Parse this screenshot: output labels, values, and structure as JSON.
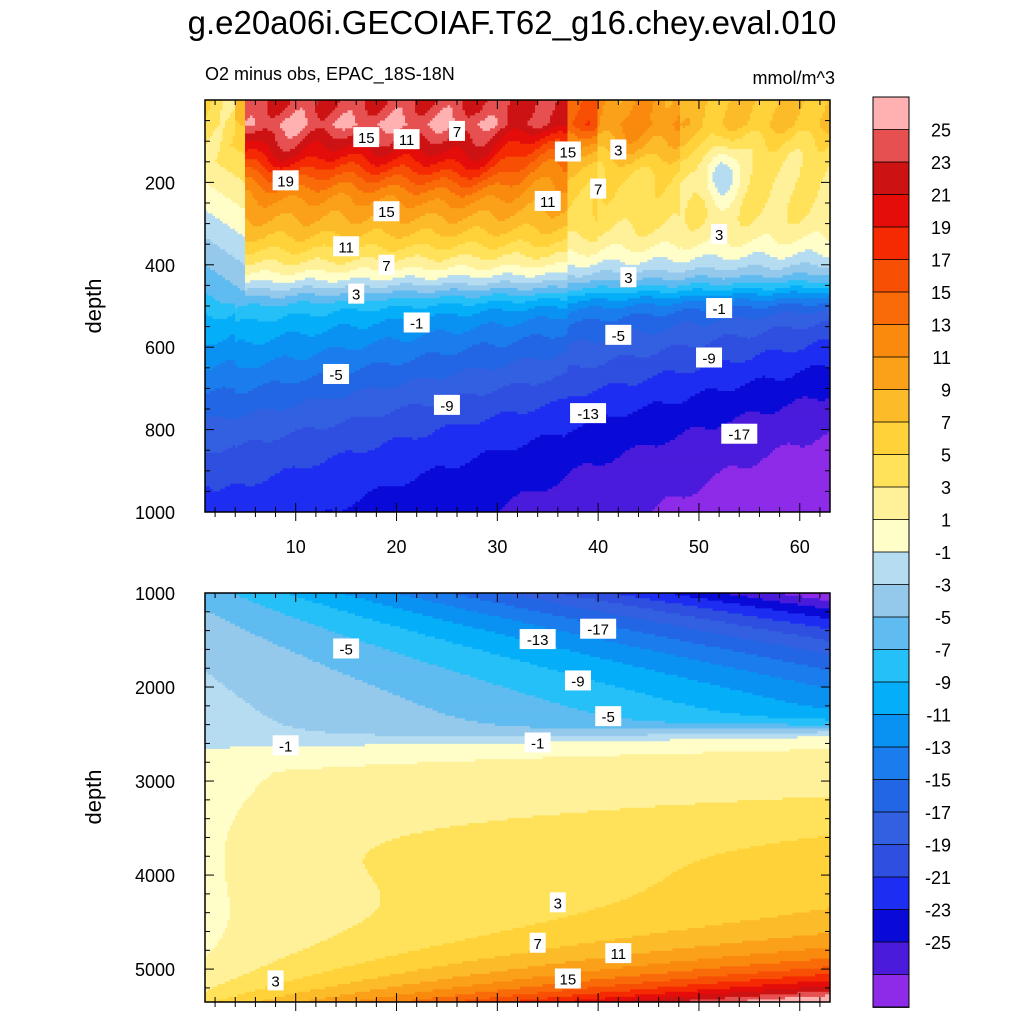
{
  "title": "g.e20a06i.GECOIAF.T62_g16.chey.eval.010",
  "subtitle_left": "O2 minus obs, EPAC_18S-18N",
  "subtitle_right": "mmol/m^3",
  "colors": {
    "pos": [
      "#fffdc8",
      "#fff19a",
      "#ffe15a",
      "#ffd23a",
      "#fcbc2a",
      "#fba019",
      "#fa8a0e",
      "#f96b09",
      "#f74f04",
      "#f52a02",
      "#e40d0a",
      "#cc1212",
      "#e65050",
      "#ffb0b0"
    ],
    "neg": [
      "#b5dcf0",
      "#94c9ec",
      "#5fbbf0",
      "#26c0f8",
      "#04aef8",
      "#0a92f2",
      "#1a7ced",
      "#2266e5",
      "#3360e0",
      "#2e4fdf",
      "#1e2df2",
      "#0a0ad8",
      "#4b1bdc",
      "#8d2be8"
    ]
  },
  "chart_data": [
    {
      "type": "contour",
      "panel": "upper",
      "title": "",
      "xlabel": "",
      "ylabel": "depth",
      "xlim": [
        1,
        63
      ],
      "ylim": [
        1000,
        0
      ],
      "x_ticks": [
        "10",
        "20",
        "30",
        "40",
        "50",
        "60"
      ],
      "y_ticks": [
        "200",
        "400",
        "600",
        "800",
        "1000"
      ],
      "contour_interval": 2,
      "contour_labels": [
        {
          "text": "15",
          "x": 17,
          "y": 90
        },
        {
          "text": "11",
          "x": 21,
          "y": 95
        },
        {
          "text": "7",
          "x": 26,
          "y": 75
        },
        {
          "text": "15",
          "x": 37,
          "y": 125
        },
        {
          "text": "3",
          "x": 42,
          "y": 120
        },
        {
          "text": "19",
          "x": 9,
          "y": 195
        },
        {
          "text": "7",
          "x": 40,
          "y": 215
        },
        {
          "text": "11",
          "x": 35,
          "y": 245
        },
        {
          "text": "15",
          "x": 19,
          "y": 270
        },
        {
          "text": "3",
          "x": 52,
          "y": 325
        },
        {
          "text": "11",
          "x": 15,
          "y": 355
        },
        {
          "text": "7",
          "x": 19,
          "y": 400
        },
        {
          "text": "3",
          "x": 43,
          "y": 430
        },
        {
          "text": "3",
          "x": 16,
          "y": 470
        },
        {
          "text": "-1",
          "x": 52,
          "y": 505
        },
        {
          "text": "-1",
          "x": 22,
          "y": 540
        },
        {
          "text": "-5",
          "x": 42,
          "y": 570
        },
        {
          "text": "-9",
          "x": 51,
          "y": 625
        },
        {
          "text": "-5",
          "x": 14,
          "y": 665
        },
        {
          "text": "-9",
          "x": 25,
          "y": 740
        },
        {
          "text": "-13",
          "x": 39,
          "y": 760
        },
        {
          "text": "-17",
          "x": 54,
          "y": 810
        }
      ]
    },
    {
      "type": "contour",
      "panel": "lower",
      "title": "",
      "xlabel": "",
      "ylabel": "depth",
      "xlim": [
        1,
        63
      ],
      "ylim": [
        5350,
        1000
      ],
      "y_ticks": [
        "1000",
        "2000",
        "3000",
        "4000",
        "5000"
      ],
      "contour_interval": 2,
      "contour_labels": [
        {
          "text": "-17",
          "x": 40,
          "y": 1380
        },
        {
          "text": "-13",
          "x": 34,
          "y": 1490
        },
        {
          "text": "-5",
          "x": 15,
          "y": 1590
        },
        {
          "text": "-9",
          "x": 38,
          "y": 1930
        },
        {
          "text": "-5",
          "x": 41,
          "y": 2310
        },
        {
          "text": "-1",
          "x": 9,
          "y": 2620
        },
        {
          "text": "-1",
          "x": 34,
          "y": 2590
        },
        {
          "text": "3",
          "x": 36,
          "y": 4290
        },
        {
          "text": "7",
          "x": 34,
          "y": 4720
        },
        {
          "text": "11",
          "x": 42,
          "y": 4830
        },
        {
          "text": "15",
          "x": 37,
          "y": 5100
        },
        {
          "text": "3",
          "x": 8,
          "y": 5120
        }
      ]
    }
  ],
  "colorbar": {
    "labels": [
      "25",
      "23",
      "21",
      "19",
      "17",
      "15",
      "13",
      "11",
      "9",
      "7",
      "5",
      "3",
      "1",
      "-1",
      "-3",
      "-5",
      "-7",
      "-9",
      "-11",
      "-13",
      "-15",
      "-17",
      "-19",
      "-21",
      "-23",
      "-25"
    ],
    "colors": [
      "#ffb0b0",
      "#e65050",
      "#cc1212",
      "#e40d0a",
      "#f52a02",
      "#f74f04",
      "#f96b09",
      "#fa8a0e",
      "#fba019",
      "#fcbc2a",
      "#ffd23a",
      "#ffe15a",
      "#fff19a",
      "#fffdc8",
      "#b5dcf0",
      "#94c9ec",
      "#5fbbf0",
      "#26c0f8",
      "#04aef8",
      "#0a92f2",
      "#1a7ced",
      "#2266e5",
      "#3360e0",
      "#2e4fdf",
      "#1e2df2",
      "#0a0ad8",
      "#4b1bdc",
      "#8d2be8"
    ]
  }
}
